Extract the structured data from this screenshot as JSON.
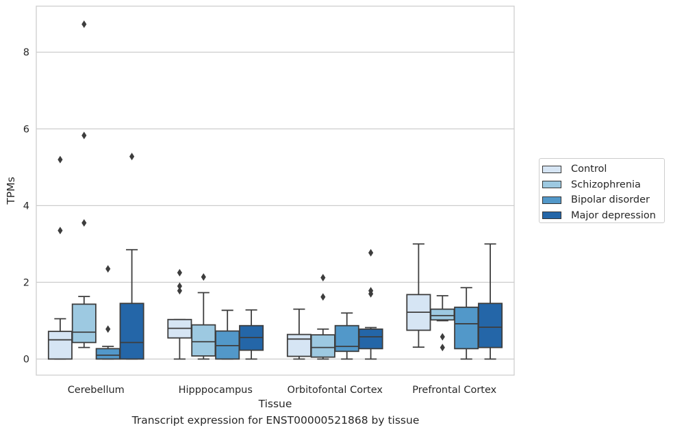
{
  "chart_data": {
    "type": "box",
    "title": "Transcript expression for ENST00000521868 by tissue",
    "xlabel": "Tissue",
    "ylabel": "TPMs",
    "ylim": [
      -0.42,
      9.2
    ],
    "yticks": [
      0,
      2,
      4,
      6,
      8
    ],
    "grid": "horizontal",
    "legend_position": "right",
    "categories": [
      "Cerebellum",
      "Hipppocampus",
      "Orbitofontal Cortex",
      "Prefrontal Cortex"
    ],
    "series": [
      {
        "name": "Control",
        "color": "#d6e5f4",
        "boxes": [
          {
            "whislo": 0.0,
            "q1": 0.0,
            "med": 0.5,
            "q3": 0.72,
            "whishi": 1.05,
            "fliers": [
              3.35,
              5.2
            ]
          },
          {
            "whislo": 0.0,
            "q1": 0.55,
            "med": 0.8,
            "q3": 1.03,
            "whishi": 1.03,
            "fliers": [
              1.78,
              1.9,
              2.25
            ]
          },
          {
            "whislo": 0.0,
            "q1": 0.07,
            "med": 0.52,
            "q3": 0.64,
            "whishi": 1.3,
            "fliers": []
          },
          {
            "whislo": 0.31,
            "q1": 0.75,
            "med": 1.22,
            "q3": 1.68,
            "whishi": 3.0,
            "fliers": []
          }
        ]
      },
      {
        "name": "Schizophrenia",
        "color": "#9dc9e1",
        "boxes": [
          {
            "whislo": 0.3,
            "q1": 0.43,
            "med": 0.7,
            "q3": 1.43,
            "whishi": 1.63,
            "fliers": [
              3.55,
              5.83,
              8.73
            ]
          },
          {
            "whislo": 0.0,
            "q1": 0.08,
            "med": 0.45,
            "q3": 0.89,
            "whishi": 1.73,
            "fliers": [
              2.14
            ]
          },
          {
            "whislo": 0.0,
            "q1": 0.05,
            "med": 0.3,
            "q3": 0.63,
            "whishi": 0.78,
            "fliers": [
              1.62,
              2.12
            ]
          },
          {
            "whislo": 1.0,
            "q1": 1.02,
            "med": 1.13,
            "q3": 1.3,
            "whishi": 1.65,
            "fliers": [
              0.3,
              0.58
            ]
          }
        ]
      },
      {
        "name": "Bipolar disorder",
        "color": "#5298c9",
        "boxes": [
          {
            "whislo": 0.0,
            "q1": 0.0,
            "med": 0.1,
            "q3": 0.27,
            "whishi": 0.33,
            "fliers": [
              0.78,
              2.35
            ]
          },
          {
            "whislo": 0.0,
            "q1": 0.0,
            "med": 0.35,
            "q3": 0.73,
            "whishi": 1.27,
            "fliers": []
          },
          {
            "whislo": 0.0,
            "q1": 0.2,
            "med": 0.33,
            "q3": 0.87,
            "whishi": 1.2,
            "fliers": []
          },
          {
            "whislo": 0.0,
            "q1": 0.27,
            "med": 0.92,
            "q3": 1.35,
            "whishi": 1.86,
            "fliers": []
          }
        ]
      },
      {
        "name": "Major depression",
        "color": "#2466a8",
        "boxes": [
          {
            "whislo": 0.0,
            "q1": 0.0,
            "med": 0.43,
            "q3": 1.45,
            "whishi": 2.85,
            "fliers": [
              5.28
            ]
          },
          {
            "whislo": 0.0,
            "q1": 0.23,
            "med": 0.56,
            "q3": 0.87,
            "whishi": 1.28,
            "fliers": []
          },
          {
            "whislo": 0.0,
            "q1": 0.27,
            "med": 0.58,
            "q3": 0.78,
            "whishi": 0.82,
            "fliers": [
              1.7,
              1.78,
              2.77
            ]
          },
          {
            "whislo": 0.0,
            "q1": 0.3,
            "med": 0.83,
            "q3": 1.45,
            "whishi": 3.0,
            "fliers": []
          }
        ]
      }
    ]
  }
}
